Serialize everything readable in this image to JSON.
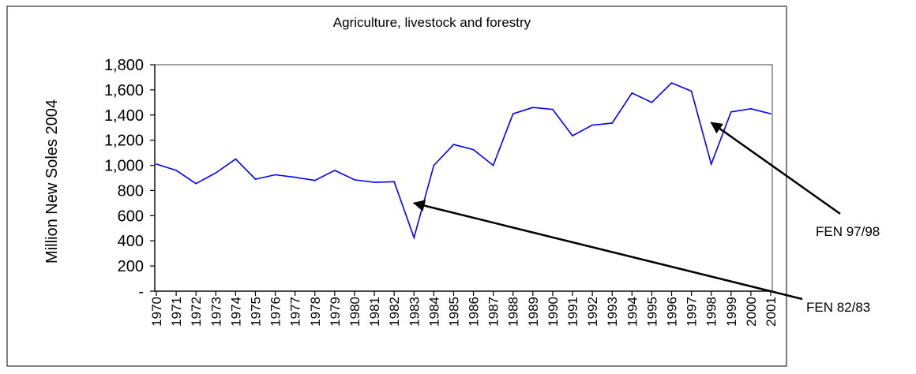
{
  "colors": {
    "line": "#0000ff",
    "plot_border": "#808080",
    "axes": "#000000",
    "annotation_arrow": "#000000"
  },
  "chart_data": {
    "type": "line",
    "title": "Agriculture, livestock and forestry",
    "xlabel": "",
    "ylabel": "Million New Soles 2004",
    "ylim": [
      0,
      1800
    ],
    "y_ticks": [
      0,
      200,
      400,
      600,
      800,
      1000,
      1200,
      1400,
      1600,
      1800
    ],
    "y_tick_labels": [
      "-",
      "200",
      "400",
      "600",
      "800",
      "1,000",
      "1,200",
      "1,400",
      "1,600",
      "1,800"
    ],
    "grid": false,
    "legend": "none",
    "categories": [
      "1970",
      "1971",
      "1972",
      "1973",
      "1974",
      "1975",
      "1976",
      "1977",
      "1978",
      "1979",
      "1980",
      "1981",
      "1982",
      "1983",
      "1984",
      "1985",
      "1986",
      "1987",
      "1988",
      "1989",
      "1990",
      "1991",
      "1992",
      "1993",
      "1994",
      "1995",
      "1996",
      "1997",
      "1998",
      "1999",
      "2000",
      "2001"
    ],
    "series": [
      {
        "values": [
          1010,
          960,
          855,
          940,
          1050,
          890,
          925,
          905,
          880,
          960,
          885,
          865,
          870,
          425,
          1000,
          1165,
          1125,
          1000,
          1410,
          1460,
          1445,
          1235,
          1320,
          1335,
          1575,
          1500,
          1655,
          1590,
          1010,
          1425,
          1450,
          1410
        ]
      }
    ],
    "annotations": [
      {
        "text": "FEN 82/83",
        "target_year": "1983",
        "target_value": 700
      },
      {
        "text": "FEN 97/98",
        "target_year": "1998",
        "target_value": 1340
      }
    ]
  }
}
